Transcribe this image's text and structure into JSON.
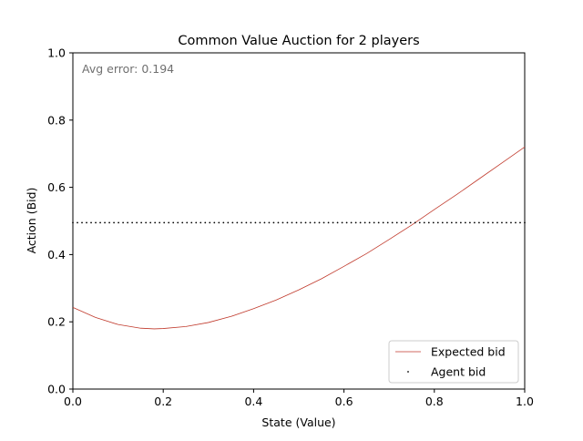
{
  "chart_data": {
    "type": "line",
    "title": "Common Value Auction for 2 players",
    "xlabel": "State (Value)",
    "ylabel": "Action (Bid)",
    "xlim": [
      0.0,
      1.0
    ],
    "ylim": [
      0.0,
      1.0
    ],
    "xticks": [
      "0.0",
      "0.2",
      "0.4",
      "0.6",
      "0.8",
      "1.0"
    ],
    "yticks": [
      "0.0",
      "0.2",
      "0.4",
      "0.6",
      "0.8",
      "1.0"
    ],
    "grid": false,
    "legend_position": "lower-right",
    "annotation": "Avg error: 0.194",
    "series": [
      {
        "name": "Expected bid",
        "kind": "line",
        "color": "#c0392b",
        "x": [
          0.0,
          0.05,
          0.1,
          0.15,
          0.18,
          0.2,
          0.25,
          0.3,
          0.35,
          0.4,
          0.45,
          0.5,
          0.55,
          0.6,
          0.65,
          0.7,
          0.75,
          0.8,
          0.85,
          0.9,
          0.95,
          1.0
        ],
        "y": [
          0.243,
          0.213,
          0.192,
          0.181,
          0.179,
          0.18,
          0.186,
          0.198,
          0.216,
          0.239,
          0.265,
          0.295,
          0.328,
          0.365,
          0.403,
          0.445,
          0.488,
          0.534,
          0.579,
          0.626,
          0.673,
          0.72
        ]
      },
      {
        "name": "Agent bid",
        "kind": "scatter",
        "color": "#000000",
        "x_range": [
          0.0,
          1.0
        ],
        "count": 100,
        "y": 0.495
      }
    ]
  }
}
